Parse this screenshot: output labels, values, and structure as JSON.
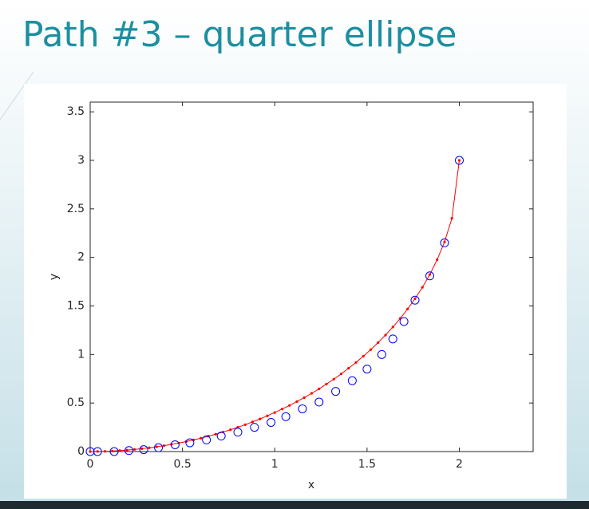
{
  "title": "Path #3 – quarter ellipse",
  "chart_data": {
    "type": "line",
    "xlabel": "x",
    "ylabel": "y",
    "xlim": [
      0,
      2.4
    ],
    "ylim": [
      0,
      3.6
    ],
    "xticks": [
      0,
      0.5,
      1,
      1.5,
      2
    ],
    "yticks": [
      0,
      0.5,
      1,
      1.5,
      2,
      2.5,
      3,
      3.5
    ],
    "series": [
      {
        "color": "#ff0000",
        "marker": "dot",
        "x": [
          0,
          0.04,
          0.08,
          0.12,
          0.16,
          0.2,
          0.24,
          0.28,
          0.32,
          0.36,
          0.4,
          0.44,
          0.48,
          0.52,
          0.56,
          0.6,
          0.64,
          0.68,
          0.72,
          0.76,
          0.8,
          0.84,
          0.88,
          0.92,
          0.96,
          1,
          1.04,
          1.08,
          1.12,
          1.16,
          1.2,
          1.24,
          1.28,
          1.32,
          1.36,
          1.4,
          1.44,
          1.48,
          1.52,
          1.56,
          1.6,
          1.64,
          1.68,
          1.72,
          1.76,
          1.8,
          1.84,
          1.88,
          1.92,
          1.96,
          2
        ],
        "values": [
          0,
          0.001,
          0.002,
          0.005,
          0.01,
          0.015,
          0.022,
          0.03,
          0.039,
          0.049,
          0.061,
          0.074,
          0.088,
          0.103,
          0.12,
          0.138,
          0.158,
          0.179,
          0.201,
          0.225,
          0.25,
          0.277,
          0.306,
          0.336,
          0.368,
          0.402,
          0.438,
          0.475,
          0.515,
          0.556,
          0.6,
          0.646,
          0.695,
          0.746,
          0.8,
          0.858,
          0.918,
          0.982,
          1.05,
          1.123,
          1.2,
          1.283,
          1.372,
          1.469,
          1.575,
          1.692,
          1.824,
          1.977,
          2.16,
          2.403,
          3
        ]
      },
      {
        "color": "#0000ff",
        "marker": "circle",
        "line": false,
        "x": [
          0,
          0.04,
          0.13,
          0.21,
          0.29,
          0.37,
          0.46,
          0.54,
          0.63,
          0.71,
          0.8,
          0.89,
          0.98,
          1.06,
          1.15,
          1.24,
          1.33,
          1.42,
          1.5,
          1.58,
          1.64,
          1.7,
          1.76,
          1.84,
          1.92,
          2
        ],
        "values": [
          0,
          0,
          0,
          0.01,
          0.02,
          0.04,
          0.07,
          0.09,
          0.12,
          0.16,
          0.2,
          0.25,
          0.3,
          0.36,
          0.44,
          0.51,
          0.62,
          0.73,
          0.85,
          1,
          1.16,
          1.34,
          1.56,
          1.81,
          2.15,
          3
        ]
      }
    ]
  }
}
